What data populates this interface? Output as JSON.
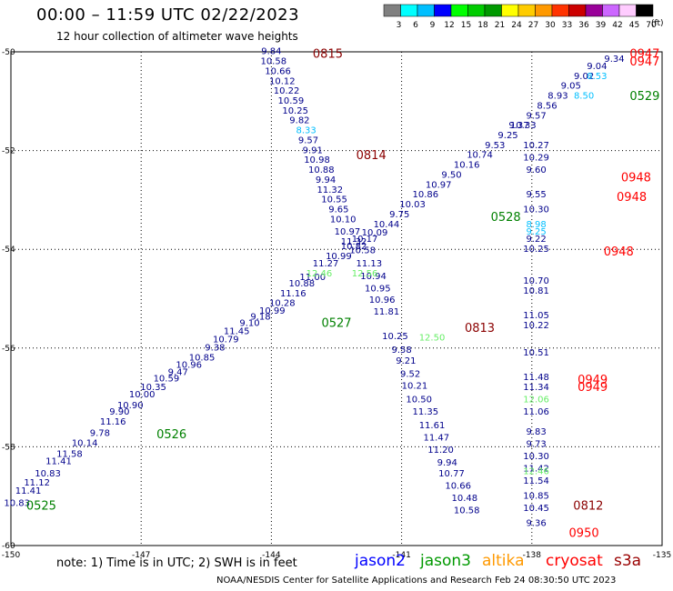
{
  "title": "00:00 – 11:59 UTC 02/22/2023",
  "subtitle": "12 hour collection of altimeter wave heights",
  "note": "note:  1) Time is in UTC;  2) SWH is in feet",
  "credit": "NOAA/NESDIS Center for Satellite Applications and Research     Feb 24 08:30:50 UTC 2023",
  "colorbar": {
    "unit": "(ft)",
    "colors": [
      "#808080",
      "#00ffff",
      "#00bfff",
      "#0000ff",
      "#00ff00",
      "#00cc00",
      "#009900",
      "#ffff00",
      "#ffcc00",
      "#ff9900",
      "#ff3300",
      "#cc0000",
      "#990099",
      "#cc66ff",
      "#ffccff",
      "#000000"
    ],
    "labels": [
      "3",
      "6",
      "9",
      "12",
      "15",
      "18",
      "21",
      "24",
      "27",
      "30",
      "33",
      "36",
      "39",
      "42",
      "45",
      "70"
    ]
  },
  "satellites": [
    {
      "name": "jason2",
      "color": "#0000ff"
    },
    {
      "name": "jason3",
      "color": "#009900"
    },
    {
      "name": "altika",
      "color": "#ff9900"
    },
    {
      "name": "cryosat",
      "color": "#ff0000"
    },
    {
      "name": "s3a",
      "color": "#990000"
    }
  ],
  "chart_data": {
    "type": "scatter",
    "xlim": [
      -150,
      -135
    ],
    "ylim": [
      -60,
      -50
    ],
    "x_ticks": [
      "-150",
      "-147",
      "-144",
      "-141",
      "-138",
      "-135"
    ],
    "y_ticks": [
      "-50",
      "-52",
      "-54",
      "-56",
      "-58",
      "-60"
    ],
    "grid": true,
    "series": [
      {
        "name": "jason3",
        "color": "#00008b",
        "points": [
          [
            -149.86,
            -59.2,
            "10.83"
          ],
          [
            -149.6,
            -58.95,
            "11.41"
          ],
          [
            -149.4,
            -58.78,
            "11.12"
          ],
          [
            -149.15,
            -58.6,
            "10.83"
          ],
          [
            -148.9,
            -58.35,
            "11.41"
          ],
          [
            -148.65,
            -58.2,
            "11.58"
          ],
          [
            -148.3,
            -57.98,
            "10.14"
          ],
          [
            -147.95,
            -57.78,
            "9.78"
          ],
          [
            -147.65,
            -57.55,
            "11.16"
          ],
          [
            -147.5,
            -57.35,
            "9.90"
          ],
          [
            -147.25,
            -57.22,
            "10.90"
          ],
          [
            -146.98,
            -57.0,
            "10.00"
          ],
          [
            -146.72,
            -56.85,
            "10.35"
          ],
          [
            -146.42,
            -56.68,
            "10.59"
          ],
          [
            -146.15,
            -56.55,
            "9.47"
          ],
          [
            -145.9,
            -56.4,
            "10.96"
          ],
          [
            -145.6,
            -56.25,
            "10.85"
          ],
          [
            -145.3,
            -56.05,
            "9.38"
          ],
          [
            -145.05,
            -55.88,
            "10.79"
          ],
          [
            -144.8,
            -55.72,
            "11.45"
          ],
          [
            -144.5,
            -55.55,
            "9.10"
          ],
          [
            -144.25,
            -55.42,
            "9.18"
          ],
          [
            -143.98,
            -55.3,
            "10.99"
          ],
          [
            -143.75,
            -55.15,
            "10.28"
          ],
          [
            -143.5,
            -54.95,
            "11.16"
          ],
          [
            -143.3,
            -54.75,
            "10.88"
          ],
          [
            -143.05,
            -54.62,
            "11.00"
          ],
          [
            -142.75,
            -54.35,
            "11.27"
          ],
          [
            -142.45,
            -54.2,
            "10.99"
          ],
          [
            -142.1,
            -54.0,
            "10.82"
          ],
          [
            -141.85,
            -53.85,
            "10.17"
          ],
          [
            -141.62,
            -53.72,
            "10.09"
          ],
          [
            -141.35,
            -53.55,
            "10.44"
          ],
          [
            -141.05,
            -53.35,
            "9.75"
          ],
          [
            -140.75,
            -53.15,
            "10.03"
          ],
          [
            -140.45,
            -52.95,
            "10.86"
          ],
          [
            -140.15,
            -52.75,
            "10.97"
          ],
          [
            -139.85,
            -52.55,
            "9.50"
          ],
          [
            -139.5,
            -52.35,
            "10.16"
          ],
          [
            -139.2,
            -52.15,
            "10.74"
          ],
          [
            -138.85,
            -51.95,
            "9.53"
          ],
          [
            -138.55,
            -51.75,
            "9.25"
          ],
          [
            -138.2,
            -51.55,
            "10.33"
          ],
          [
            -137.9,
            -51.35,
            "9.57"
          ],
          [
            -137.65,
            -51.15,
            "8.56"
          ],
          [
            -137.4,
            -50.95,
            "8.93"
          ],
          [
            -137.1,
            -50.75,
            "9.05"
          ],
          [
            -136.8,
            -50.55,
            "9.02"
          ],
          [
            -136.5,
            -50.35,
            "9.04"
          ],
          [
            -136.1,
            -50.2,
            "9.34"
          ]
        ]
      },
      {
        "name": "jason3-pass2",
        "color": "#00008b",
        "points": [
          [
            -144.0,
            -50.05,
            "9.84"
          ],
          [
            -143.95,
            -50.25,
            "10.58"
          ],
          [
            -143.85,
            -50.45,
            "10.66"
          ],
          [
            -143.75,
            -50.65,
            "10.12"
          ],
          [
            -143.65,
            -50.85,
            "10.22"
          ],
          [
            -143.55,
            -51.05,
            "10.59"
          ],
          [
            -143.45,
            -51.25,
            "10.25"
          ],
          [
            -143.35,
            -51.45,
            "9.82"
          ],
          [
            -143.15,
            -51.85,
            "9.57"
          ],
          [
            -143.05,
            -52.05,
            "9.91"
          ],
          [
            -142.95,
            -52.25,
            "10.98"
          ],
          [
            -142.85,
            -52.45,
            "10.88"
          ],
          [
            -142.75,
            -52.65,
            "9.94"
          ],
          [
            -142.65,
            -52.85,
            "11.32"
          ],
          [
            -142.55,
            -53.05,
            "10.55"
          ],
          [
            -142.45,
            -53.25,
            "9.65"
          ],
          [
            -142.35,
            -53.45,
            "10.10"
          ],
          [
            -142.25,
            -53.7,
            "10.97"
          ],
          [
            -142.1,
            -53.9,
            "11.32"
          ],
          [
            -141.9,
            -54.08,
            "10.58"
          ],
          [
            -141.75,
            -54.35,
            "11.13"
          ],
          [
            -141.65,
            -54.6,
            "10.94"
          ],
          [
            -141.55,
            -54.85,
            "10.95"
          ],
          [
            -141.45,
            -55.08,
            "10.96"
          ],
          [
            -141.35,
            -55.32,
            "11.81"
          ],
          [
            -141.15,
            -55.82,
            "10.25"
          ],
          [
            -141.0,
            -56.1,
            "9.58"
          ],
          [
            -140.9,
            -56.32,
            "9.21"
          ],
          [
            -140.8,
            -56.58,
            "9.52"
          ],
          [
            -140.7,
            -56.82,
            "10.21"
          ],
          [
            -140.6,
            -57.1,
            "10.50"
          ],
          [
            -140.45,
            -57.35,
            "11.35"
          ],
          [
            -140.3,
            -57.62,
            "11.61"
          ],
          [
            -140.2,
            -57.87,
            "11.47"
          ],
          [
            -140.1,
            -58.12,
            "11.20"
          ],
          [
            -139.95,
            -58.38,
            "9.94"
          ],
          [
            -139.85,
            -58.6,
            "10.77"
          ],
          [
            -139.7,
            -58.85,
            "10.66"
          ],
          [
            -139.55,
            -59.1,
            "10.48"
          ],
          [
            -139.5,
            -59.35,
            "10.58"
          ]
        ]
      },
      {
        "name": "cryosat",
        "color": "#00008b",
        "points": [
          [
            -138.3,
            -51.55,
            "9.37"
          ],
          [
            -137.9,
            -51.95,
            "10.27"
          ],
          [
            -137.9,
            -52.2,
            "10.29"
          ],
          [
            -137.9,
            -52.45,
            "9.60"
          ],
          [
            -137.9,
            -52.95,
            "9.55"
          ],
          [
            -137.9,
            -53.25,
            "10.30"
          ],
          [
            -137.9,
            -53.85,
            "9.22"
          ],
          [
            -137.9,
            -54.05,
            "10.25"
          ],
          [
            -137.9,
            -54.7,
            "10.70"
          ],
          [
            -137.9,
            -54.9,
            "10.81"
          ],
          [
            -137.9,
            -55.4,
            "11.05"
          ],
          [
            -137.9,
            -55.6,
            "10.22"
          ],
          [
            -137.9,
            -56.15,
            "10.51"
          ],
          [
            -137.9,
            -56.65,
            "11.48"
          ],
          [
            -137.9,
            -56.85,
            "11.34"
          ],
          [
            -137.9,
            -57.35,
            "11.06"
          ],
          [
            -137.9,
            -57.75,
            "9.83"
          ],
          [
            -137.9,
            -58.0,
            "9.73"
          ],
          [
            -137.9,
            -58.25,
            "10.30"
          ],
          [
            -137.9,
            -58.5,
            "11.42"
          ],
          [
            -137.9,
            -58.75,
            "11.54"
          ],
          [
            -137.9,
            -59.05,
            "10.85"
          ],
          [
            -137.9,
            -59.3,
            "10.45"
          ],
          [
            -137.9,
            -59.6,
            "9.36"
          ]
        ]
      },
      {
        "name": "light-blue",
        "color": "#00bfff",
        "points": [
          [
            -143.2,
            -51.65,
            "8.33"
          ],
          [
            -136.8,
            -50.95,
            "8.50"
          ],
          [
            -136.5,
            -50.55,
            "8.53"
          ],
          [
            -137.9,
            -53.55,
            "8.98"
          ],
          [
            -137.9,
            -53.7,
            "9.25"
          ]
        ]
      },
      {
        "name": "light-green",
        "color": "#66ee66",
        "points": [
          [
            -142.9,
            -54.55,
            "12.46"
          ],
          [
            -141.85,
            -54.55,
            "12.56"
          ],
          [
            -140.3,
            -55.85,
            "12.50"
          ],
          [
            -137.9,
            -57.1,
            "12.06"
          ],
          [
            -137.9,
            -58.55,
            "12.46"
          ]
        ]
      }
    ],
    "pass_labels": [
      {
        "text": "0815",
        "x": -142.7,
        "y": -50.05,
        "color": "#8b0000"
      },
      {
        "text": "0814",
        "x": -141.7,
        "y": -52.1,
        "color": "#8b0000"
      },
      {
        "text": "0813",
        "x": -139.2,
        "y": -55.6,
        "color": "#8b0000"
      },
      {
        "text": "0812",
        "x": -136.7,
        "y": -59.2,
        "color": "#8b0000"
      },
      {
        "text": "0947",
        "x": -135.4,
        "y": -50.05,
        "color": "#ff0000"
      },
      {
        "text": "0947",
        "x": -135.4,
        "y": -50.2,
        "color": "#ff0000"
      },
      {
        "text": "0948",
        "x": -135.6,
        "y": -52.55,
        "color": "#ff0000"
      },
      {
        "text": "0948",
        "x": -135.7,
        "y": -52.95,
        "color": "#ff0000"
      },
      {
        "text": "0948",
        "x": -136.0,
        "y": -54.05,
        "color": "#ff0000"
      },
      {
        "text": "0949",
        "x": -136.6,
        "y": -56.65,
        "color": "#ff0000"
      },
      {
        "text": "0949",
        "x": -136.6,
        "y": -56.8,
        "color": "#ff0000"
      },
      {
        "text": "0950",
        "x": -136.8,
        "y": -59.75,
        "color": "#ff0000"
      },
      {
        "text": "0525",
        "x": -149.3,
        "y": -59.2,
        "color": "#008000"
      },
      {
        "text": "0526",
        "x": -146.3,
        "y": -57.75,
        "color": "#008000"
      },
      {
        "text": "0527",
        "x": -142.5,
        "y": -55.5,
        "color": "#008000"
      },
      {
        "text": "0528",
        "x": -138.6,
        "y": -53.35,
        "color": "#008000"
      },
      {
        "text": "0529",
        "x": -135.4,
        "y": -50.9,
        "color": "#008000"
      }
    ]
  }
}
